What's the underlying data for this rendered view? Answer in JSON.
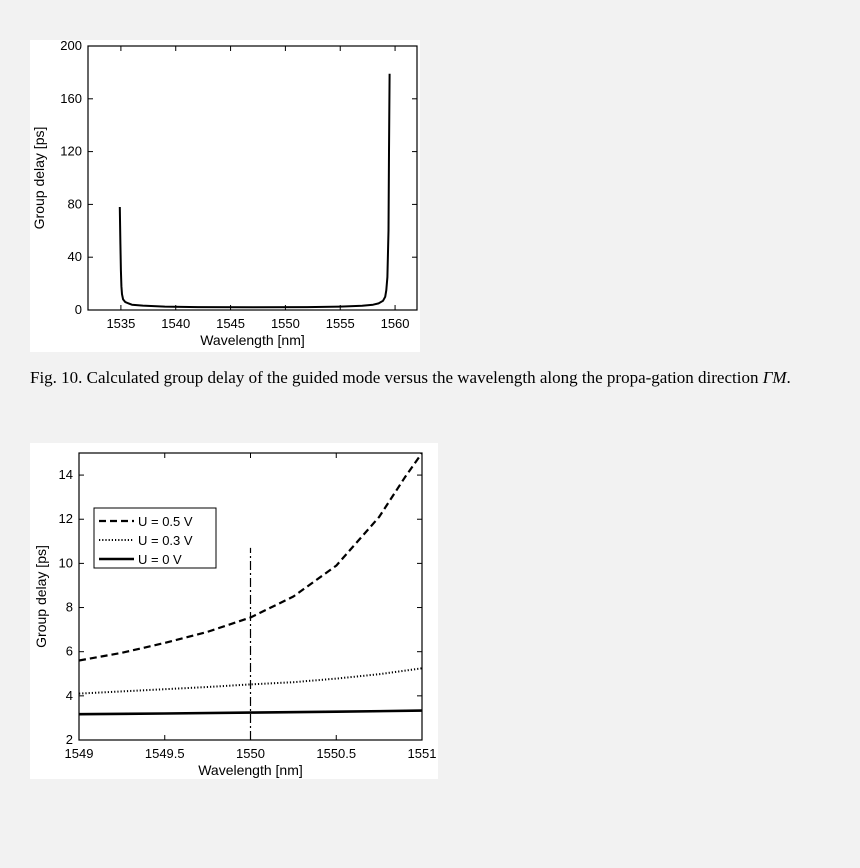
{
  "chart_data": [
    {
      "type": "line",
      "xlabel": "Wavelength [nm]",
      "ylabel": "Group delay [ps]",
      "xlim": [
        1532,
        1562
      ],
      "ylim": [
        0,
        200
      ],
      "xticks": [
        1535,
        1540,
        1545,
        1550,
        1555,
        1560
      ],
      "yticks": [
        0,
        40,
        80,
        120,
        160,
        200
      ],
      "grid": false,
      "series": [
        {
          "x": [
            1534.9,
            1534.95,
            1535.0,
            1535.05,
            1535.1,
            1535.2,
            1535.4,
            1535.7,
            1536.0,
            1537.0,
            1539.0,
            1542.0,
            1547.0,
            1552.0,
            1555.0,
            1557.0,
            1558.0,
            1558.5,
            1558.9,
            1559.1,
            1559.2,
            1559.3,
            1559.4,
            1559.45,
            1559.5
          ],
          "y": [
            78,
            50,
            30,
            18,
            12,
            8,
            6,
            5,
            4,
            3.3,
            2.6,
            2.2,
            2.1,
            2.2,
            2.6,
            3.2,
            4,
            5,
            7,
            10,
            15,
            25,
            60,
            120,
            179
          ]
        }
      ]
    },
    {
      "type": "line",
      "xlabel": "Wavelength [nm]",
      "ylabel": "Group delay [ps]",
      "xlim": [
        1549,
        1551
      ],
      "ylim": [
        2,
        15
      ],
      "xticks": [
        "1549",
        "1549.5",
        "1550",
        "1550.5",
        "1551"
      ],
      "yticks": [
        2,
        4,
        6,
        8,
        10,
        12,
        14
      ],
      "grid": false,
      "legend": "upper-left",
      "vline": {
        "x": 1550,
        "ymin": 2,
        "ymax": 10.7
      },
      "series": [
        {
          "name": "U = 0.5 V",
          "x": [
            1549.0,
            1549.25,
            1549.5,
            1549.75,
            1550.0,
            1550.25,
            1550.5,
            1550.75,
            1550.9,
            1551.0
          ],
          "y": [
            5.6,
            5.95,
            6.4,
            6.9,
            7.55,
            8.5,
            9.9,
            12.1,
            13.9,
            15.2
          ]
        },
        {
          "name": "U = 0.3 V",
          "x": [
            1549.0,
            1549.25,
            1549.5,
            1549.75,
            1550.0,
            1550.25,
            1550.5,
            1550.75,
            1551.0
          ],
          "y": [
            4.1,
            4.2,
            4.3,
            4.4,
            4.52,
            4.62,
            4.78,
            4.98,
            5.25
          ]
        },
        {
          "name": "U = 0 V",
          "x": [
            1549.0,
            1549.5,
            1550.0,
            1550.5,
            1551.0
          ],
          "y": [
            3.17,
            3.2,
            3.24,
            3.28,
            3.33
          ]
        }
      ]
    }
  ],
  "caption": {
    "text": "Fig. 10. Calculated group delay of the guided mode versus the wavelength along the propa-gation direction ",
    "symbol": "ΓM",
    "end": "."
  }
}
